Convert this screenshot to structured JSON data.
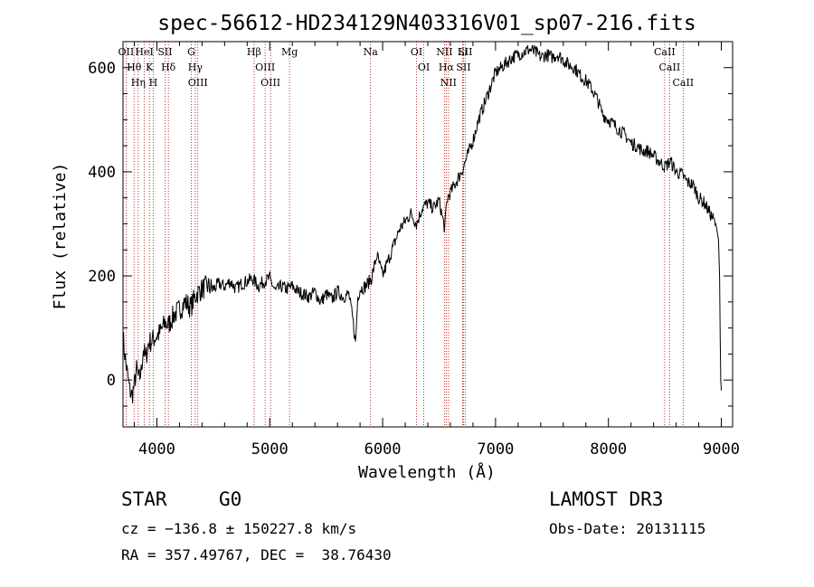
{
  "chart_data": {
    "type": "line",
    "title": "spec-56612-HD234129N403316V01_sp07-216.fits",
    "xlabel": "Wavelength (Å)",
    "ylabel": "Flux (relative)",
    "xlim": [
      3700,
      9100
    ],
    "ylim": [
      -90,
      650
    ],
    "xticks": [
      4000,
      5000,
      6000,
      7000,
      8000,
      9000
    ],
    "yticks": [
      0,
      200,
      400,
      600
    ],
    "xtick_labels": [
      "4000",
      "5000",
      "6000",
      "7000",
      "8000",
      "9000"
    ],
    "ytick_labels": [
      "0",
      "200",
      "400",
      "600"
    ],
    "series": [
      {
        "name": "flux",
        "x": [
          3700,
          3720,
          3740,
          3760,
          3780,
          3800,
          3820,
          3840,
          3860,
          3880,
          3900,
          3925,
          3950,
          3975,
          4000,
          4025,
          4050,
          4075,
          4100,
          4150,
          4200,
          4250,
          4300,
          4350,
          4400,
          4450,
          4500,
          4550,
          4600,
          4650,
          4700,
          4750,
          4800,
          4850,
          4900,
          4950,
          5000,
          5050,
          5100,
          5150,
          5200,
          5250,
          5300,
          5350,
          5400,
          5450,
          5500,
          5550,
          5600,
          5650,
          5700,
          5740,
          5760,
          5780,
          5800,
          5850,
          5900,
          5950,
          6000,
          6050,
          6100,
          6150,
          6200,
          6250,
          6300,
          6350,
          6400,
          6450,
          6500,
          6550,
          6563,
          6575,
          6600,
          6650,
          6700,
          6750,
          6800,
          6850,
          6900,
          6950,
          7000,
          7050,
          7100,
          7150,
          7200,
          7250,
          7300,
          7350,
          7400,
          7450,
          7500,
          7550,
          7600,
          7650,
          7700,
          7750,
          7800,
          7850,
          7900,
          7950,
          8000,
          8050,
          8100,
          8150,
          8200,
          8250,
          8300,
          8350,
          8400,
          8450,
          8500,
          8550,
          8600,
          8650,
          8700,
          8750,
          8800,
          8850,
          8900,
          8950,
          8960,
          8975,
          8985,
          8990,
          8995,
          9000
        ],
        "y": [
          85,
          40,
          10,
          -20,
          -30,
          -10,
          20,
          0,
          15,
          60,
          40,
          70,
          75,
          80,
          85,
          90,
          100,
          110,
          105,
          125,
          135,
          150,
          140,
          165,
          175,
          180,
          175,
          185,
          180,
          190,
          175,
          185,
          190,
          195,
          180,
          190,
          195,
          170,
          180,
          175,
          180,
          170,
          165,
          160,
          170,
          150,
          165,
          155,
          170,
          160,
          165,
          110,
          70,
          160,
          175,
          180,
          195,
          240,
          200,
          230,
          260,
          290,
          305,
          320,
          300,
          330,
          340,
          330,
          345,
          290,
          330,
          350,
          360,
          380,
          400,
          430,
          460,
          500,
          530,
          560,
          590,
          600,
          610,
          620,
          625,
          630,
          635,
          630,
          620,
          625,
          620,
          625,
          615,
          605,
          600,
          585,
          575,
          560,
          540,
          510,
          500,
          490,
          480,
          470,
          455,
          450,
          440,
          440,
          430,
          420,
          410,
          420,
          400,
          395,
          380,
          375,
          350,
          340,
          320,
          300,
          290,
          270,
          200,
          80,
          0,
          -20
        ],
        "color": "#000000"
      }
    ],
    "lines": [
      {
        "name": "H-theta",
        "label": "Hθ",
        "x": 3798
      },
      {
        "name": "O-II",
        "label": "OII",
        "x": 3727
      },
      {
        "name": "He-I",
        "label": "HeI",
        "x": 3889
      },
      {
        "name": "H-eta",
        "label": "Hη",
        "x": 3835
      },
      {
        "name": "K",
        "label": "K",
        "x": 3934
      },
      {
        "name": "H",
        "label": "H",
        "x": 3968
      },
      {
        "name": "H-delta",
        "label": "Hδ",
        "x": 4102
      },
      {
        "name": "S-II-blue",
        "label": "SII",
        "x": 4072
      },
      {
        "name": "O-III-4363",
        "label": "OIII",
        "x": 4363
      },
      {
        "name": "H-gamma",
        "label": "Hγ",
        "x": 4340
      },
      {
        "name": "G-band",
        "label": "G",
        "x": 4305
      },
      {
        "name": "H-beta",
        "label": "Hβ",
        "x": 4861
      },
      {
        "name": "O-III-5007",
        "label": "OIII",
        "x": 5007
      },
      {
        "name": "O-III-4959",
        "label": "OIII",
        "x": 4959
      },
      {
        "name": "Mg",
        "label": "Mg",
        "x": 5175
      },
      {
        "name": "Na",
        "label": "Na",
        "x": 5893
      },
      {
        "name": "O-I-6300",
        "label": "OI",
        "x": 6300
      },
      {
        "name": "O-I-6364",
        "label": "OI",
        "x": 6364
      },
      {
        "name": "H-alpha",
        "label": "Hα",
        "x": 6563
      },
      {
        "name": "N-II-6548",
        "label": "NII",
        "x": 6548
      },
      {
        "name": "N-II-6583",
        "label": "NII",
        "x": 6583
      },
      {
        "name": "S-II-6716",
        "label": "SII",
        "x": 6716
      },
      {
        "name": "Li",
        "label": "Li",
        "x": 6708
      },
      {
        "name": "S-II-6731",
        "label": "SII",
        "x": 6731
      },
      {
        "name": "Ca-II-8498",
        "label": "CaII",
        "x": 8498
      },
      {
        "name": "Ca-II-8542",
        "label": "CaII",
        "x": 8542
      },
      {
        "name": "Ca-II-8662",
        "label": "CaII",
        "x": 8662
      }
    ]
  },
  "info": {
    "class": "STAR",
    "subclass": "G0",
    "survey": "LAMOST DR3",
    "cz": "cz = −136.8 ± 150227.8 km/s",
    "obs_date": "Obs-Date: 20131115",
    "coords": "RA = 357.49767, DEC =  38.76430"
  }
}
